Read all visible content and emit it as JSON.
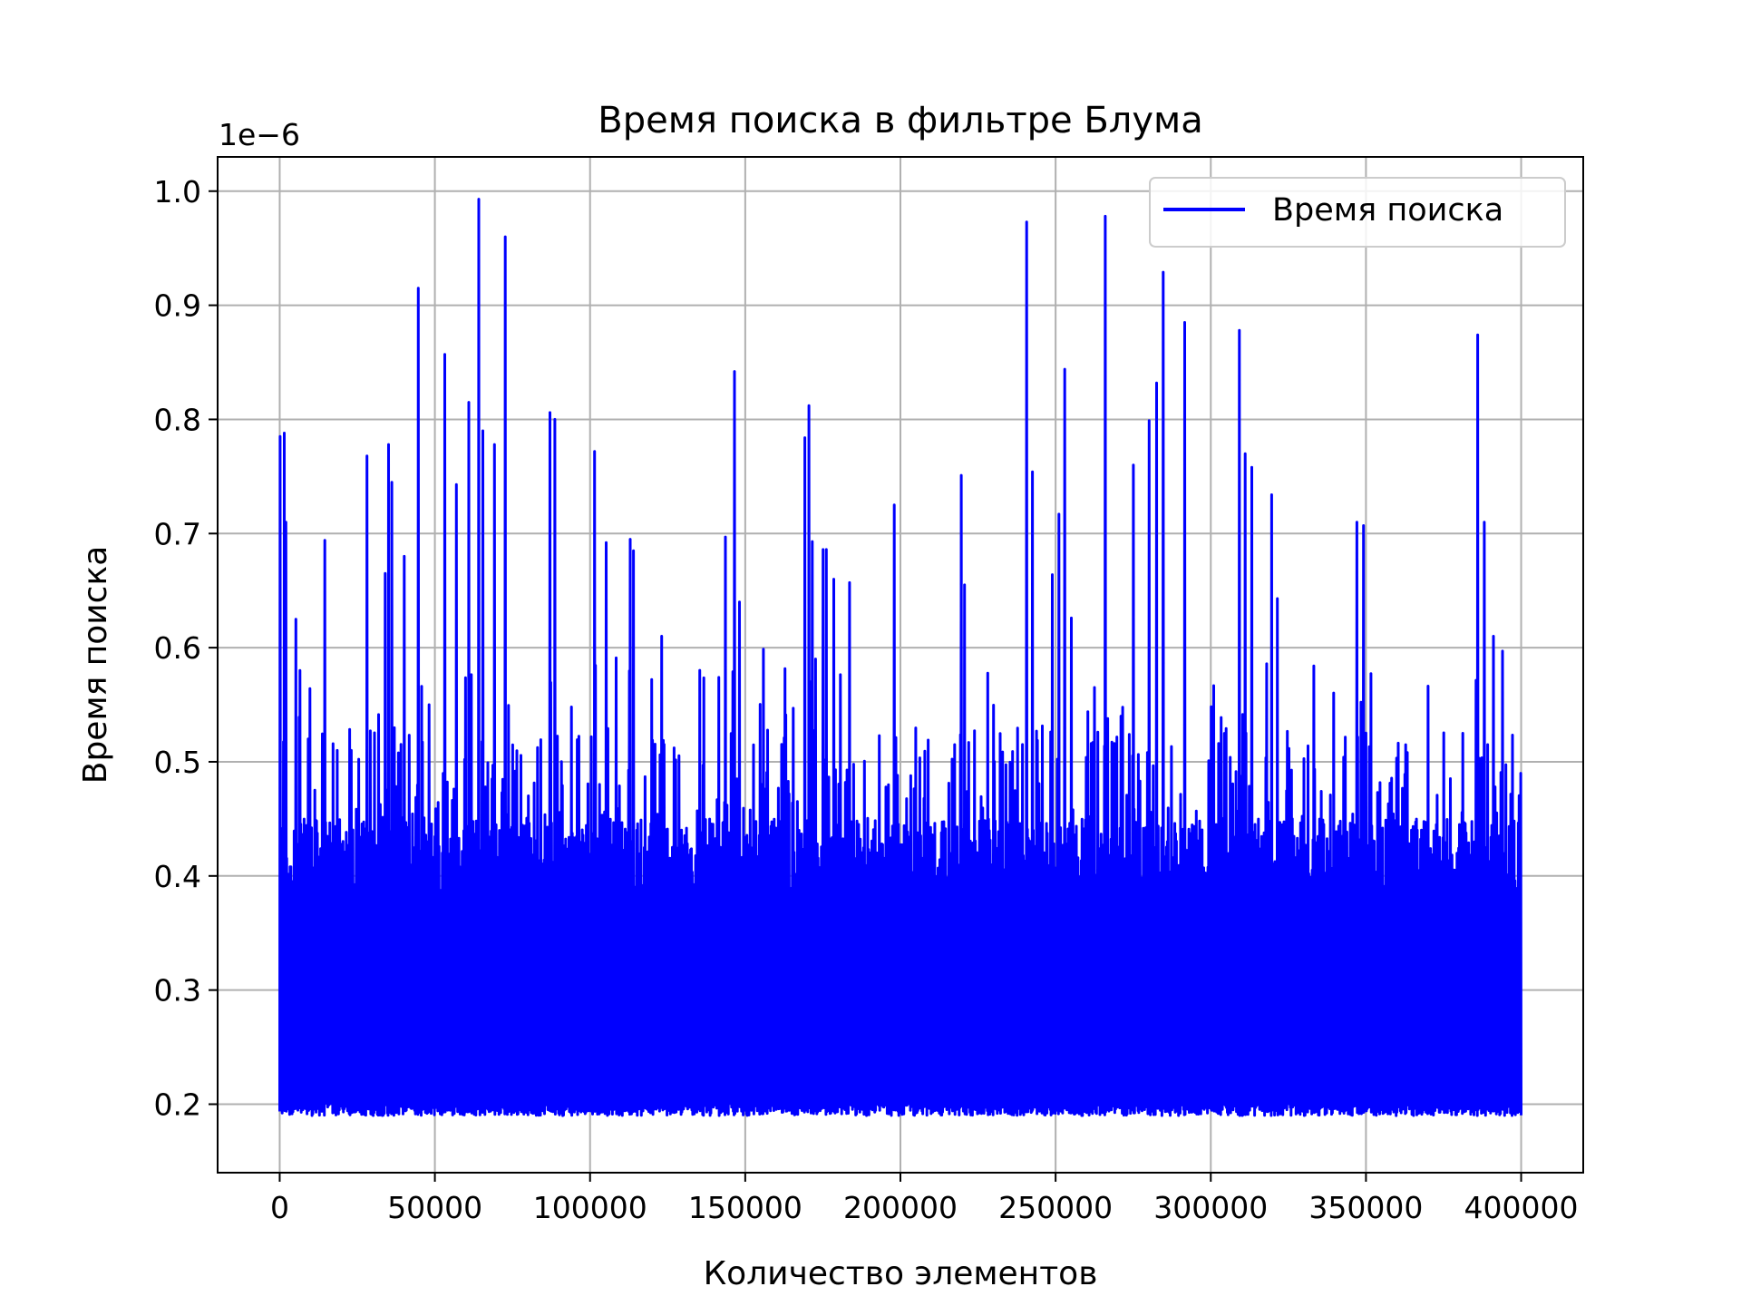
{
  "chart_data": {
    "type": "line",
    "title": "Время поиска в фильтре Блума",
    "xlabel": "Количество элементов",
    "ylabel": "Время поиска",
    "y_scale_label": "1e−6",
    "xlim": [
      -20000,
      420000
    ],
    "ylim": [
      0.14,
      1.03
    ],
    "x_ticks": [
      0,
      50000,
      100000,
      150000,
      200000,
      250000,
      300000,
      350000,
      400000
    ],
    "x_tick_labels": [
      "0",
      "50000",
      "100000",
      "150000",
      "200000",
      "250000",
      "300000",
      "350000",
      "400000"
    ],
    "y_ticks": [
      0.2,
      0.3,
      0.4,
      0.5,
      0.6,
      0.7,
      0.8,
      0.9,
      1.0
    ],
    "y_tick_labels": [
      "0.2",
      "0.3",
      "0.4",
      "0.5",
      "0.6",
      "0.7",
      "0.8",
      "0.9",
      "1.0"
    ],
    "grid": true,
    "legend_position": "top-right",
    "series": [
      {
        "name": "Время поиска",
        "color": "#0000ff",
        "x_range": [
          0,
          400000
        ],
        "baseline_min": 0.19,
        "dense_band_max": 0.45,
        "peaks": [
          [
            0,
            0.785
          ],
          [
            1500,
            0.788
          ],
          [
            2000,
            0.71
          ],
          [
            5000,
            0.625
          ],
          [
            6500,
            0.58
          ],
          [
            9000,
            0.52
          ],
          [
            14500,
            0.694
          ],
          [
            18500,
            0.51
          ],
          [
            23000,
            0.51
          ],
          [
            28000,
            0.768
          ],
          [
            34000,
            0.665
          ],
          [
            35000,
            0.778
          ],
          [
            36000,
            0.745
          ],
          [
            40000,
            0.68
          ],
          [
            44500,
            0.915
          ],
          [
            48000,
            0.55
          ],
          [
            53000,
            0.857
          ],
          [
            57000,
            0.743
          ],
          [
            61000,
            0.815
          ],
          [
            64000,
            0.993
          ],
          [
            65500,
            0.79
          ],
          [
            69000,
            0.778
          ],
          [
            72500,
            0.96
          ],
          [
            87000,
            0.806
          ],
          [
            88500,
            0.8
          ],
          [
            101500,
            0.772
          ],
          [
            105000,
            0.692
          ],
          [
            113000,
            0.695
          ],
          [
            114000,
            0.685
          ],
          [
            123000,
            0.61
          ],
          [
            143500,
            0.697
          ],
          [
            146500,
            0.842
          ],
          [
            148000,
            0.64
          ],
          [
            169000,
            0.784
          ],
          [
            170500,
            0.812
          ],
          [
            171500,
            0.693
          ],
          [
            175000,
            0.686
          ],
          [
            176000,
            0.686
          ],
          [
            178500,
            0.66
          ],
          [
            183500,
            0.657
          ],
          [
            198000,
            0.725
          ],
          [
            219500,
            0.751
          ],
          [
            220500,
            0.655
          ],
          [
            240500,
            0.973
          ],
          [
            242500,
            0.754
          ],
          [
            249000,
            0.664
          ],
          [
            251000,
            0.717
          ],
          [
            253000,
            0.844
          ],
          [
            255000,
            0.626
          ],
          [
            266000,
            0.978
          ],
          [
            271000,
            0.54
          ],
          [
            275000,
            0.76
          ],
          [
            280000,
            0.799
          ],
          [
            282500,
            0.832
          ],
          [
            284500,
            0.929
          ],
          [
            291500,
            0.885
          ],
          [
            309000,
            0.878
          ],
          [
            311000,
            0.77
          ],
          [
            313000,
            0.758
          ],
          [
            319500,
            0.734
          ],
          [
            321500,
            0.643
          ],
          [
            333000,
            0.584
          ],
          [
            347000,
            0.71
          ],
          [
            349000,
            0.707
          ],
          [
            386000,
            0.874
          ],
          [
            388000,
            0.71
          ],
          [
            391000,
            0.61
          ],
          [
            394000,
            0.597
          ],
          [
            400000,
            0.49
          ]
        ]
      }
    ]
  }
}
